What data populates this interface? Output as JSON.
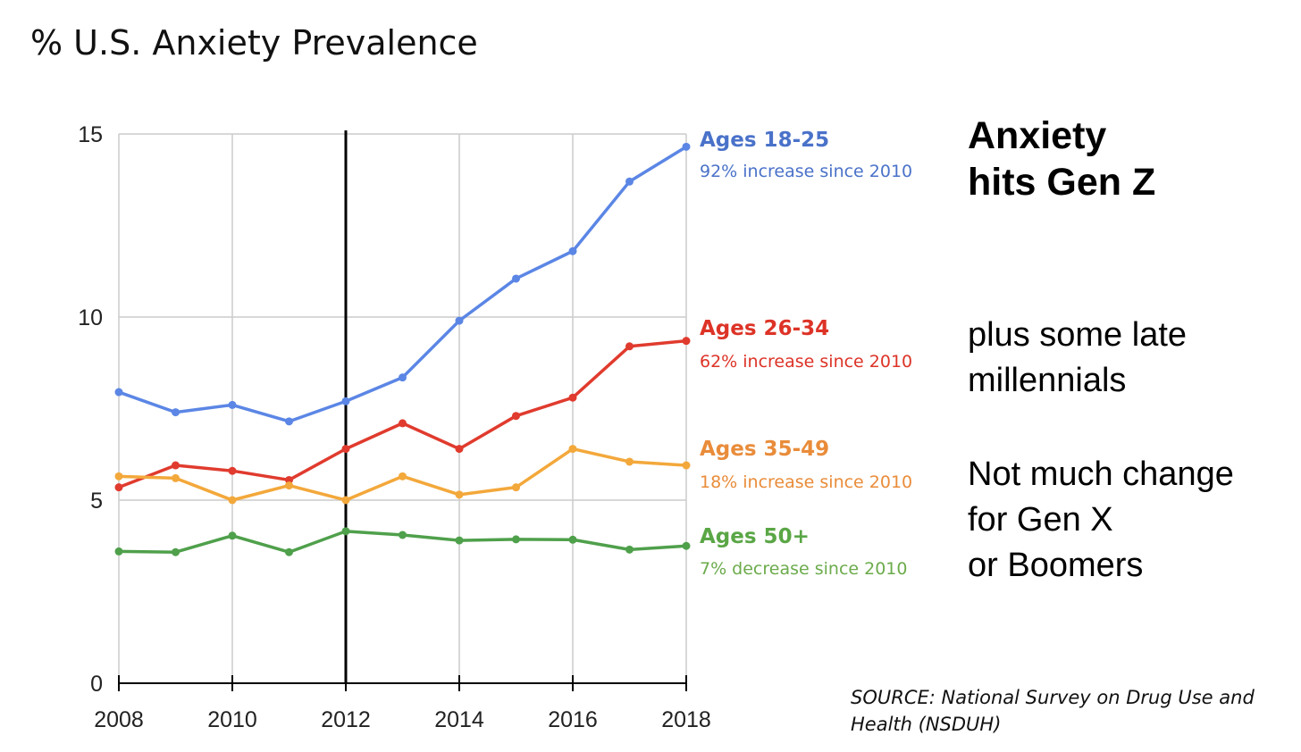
{
  "chart_data": {
    "type": "line",
    "title": "% U.S. Anxiety Prevalence",
    "x": [
      2008,
      2009,
      2010,
      2011,
      2012,
      2013,
      2014,
      2015,
      2016,
      2017,
      2018
    ],
    "xticks": [
      "2008",
      "2010",
      "2012",
      "2014",
      "2016",
      "2018"
    ],
    "yticks": [
      "0",
      "5",
      "10",
      "15"
    ],
    "ylim": [
      0,
      15
    ],
    "xlim": [
      2008,
      2018
    ],
    "grid": true,
    "reference_line_x": 2012,
    "series": [
      {
        "name": "Ages 18-25",
        "color": "#5b86e5",
        "values": [
          7.95,
          7.4,
          7.6,
          7.15,
          7.7,
          8.35,
          9.9,
          11.05,
          11.8,
          13.7,
          14.65
        ],
        "label": "Ages 18-25",
        "sublabel": "92% increase since 2010",
        "label_color": "#4a72c9",
        "sublabel_color": "#4a72c9"
      },
      {
        "name": "Ages 26-34",
        "color": "#e03b2e",
        "values": [
          5.35,
          5.95,
          5.8,
          5.55,
          6.4,
          7.1,
          6.4,
          7.3,
          7.8,
          9.2,
          9.35
        ],
        "label": "Ages 26-34",
        "sublabel": "62% increase since 2010",
        "label_color": "#dd3327",
        "sublabel_color": "#dd3327"
      },
      {
        "name": "Ages 35-49",
        "color": "#f3a83b",
        "values": [
          5.65,
          5.6,
          5.0,
          5.4,
          5.0,
          5.65,
          5.15,
          5.35,
          6.4,
          6.05,
          5.95
        ],
        "label": "Ages 35-49",
        "sublabel": "18% increase since 2010",
        "label_color": "#e98c3a",
        "sublabel_color": "#e98c3a"
      },
      {
        "name": "Ages 50+",
        "color": "#4fa04b",
        "values": [
          3.6,
          3.58,
          4.03,
          3.58,
          4.15,
          4.05,
          3.9,
          3.93,
          3.92,
          3.65,
          3.75
        ],
        "label": "Ages 50+",
        "sublabel": "7% decrease since 2010",
        "label_color": "#5aa646",
        "sublabel_color": "#6bab4b"
      }
    ]
  },
  "annotations": {
    "headline_line1": "Anxiety",
    "headline_line2": "hits Gen Z",
    "note1_line1": "plus some late",
    "note1_line2": "millennials",
    "note2_line1": "Not much change",
    "note2_line2": "for Gen X",
    "note2_line3": "or Boomers",
    "source_line1": "SOURCE: National Survey on Drug Use and",
    "source_line2": "Health (NSDUH)"
  }
}
